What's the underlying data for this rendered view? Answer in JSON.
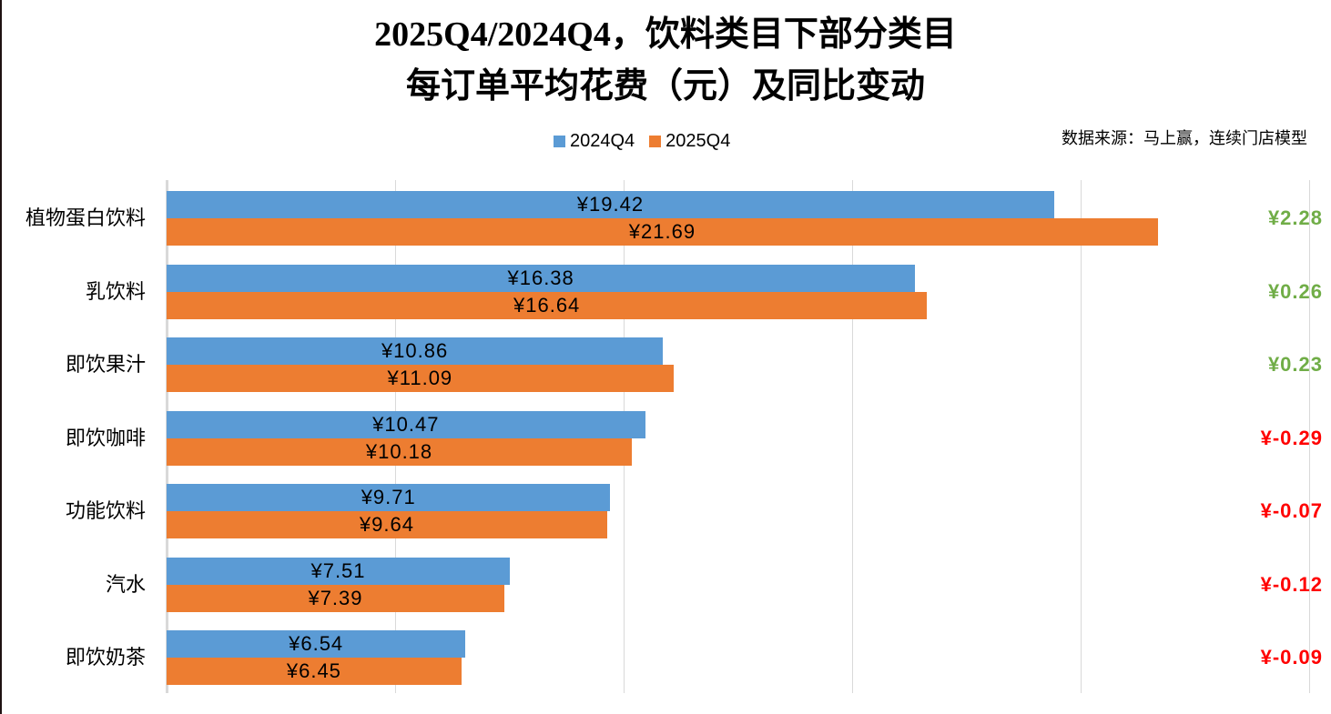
{
  "page": {
    "background": "#FFFFFF"
  },
  "title": {
    "line1": "2025Q4/2024Q4，饮料类目下部分类目",
    "line2": "每订单平均花费（元）及同比变动"
  },
  "source_note": "数据来源：马上赢，连续门店模型",
  "legend": {
    "items": [
      {
        "label": "2024Q4",
        "color": "#5B9BD5"
      },
      {
        "label": "2025Q4",
        "color": "#ED7D31"
      }
    ]
  },
  "colors": {
    "series_2024q4": "#5B9BD5",
    "series_2025q4": "#ED7D31",
    "positive_change": "#70AD47",
    "negative_change": "#FF0000",
    "gridline": "#D9D9D9",
    "label_text": "#000000"
  },
  "chart_data": {
    "type": "bar",
    "orientation": "horizontal",
    "title": "2025Q4/2024Q4，饮料类目下部分类目 每订单平均花费（元）及同比变动",
    "categories": [
      "植物蛋白饮料",
      "乳饮料",
      "即饮果汁",
      "即饮咖啡",
      "功能饮料",
      "汽水",
      "即饮奶茶"
    ],
    "series": [
      {
        "name": "2024Q4",
        "color": "#5B9BD5",
        "values": [
          19.42,
          16.38,
          10.86,
          10.47,
          9.71,
          7.51,
          6.54
        ],
        "labels": [
          "¥19.42",
          "¥16.38",
          "¥10.86",
          "¥10.47",
          "¥9.71",
          "¥7.51",
          "¥6.54"
        ]
      },
      {
        "name": "2025Q4",
        "color": "#ED7D31",
        "values": [
          21.69,
          16.64,
          11.09,
          10.18,
          9.64,
          7.39,
          6.45
        ],
        "labels": [
          "¥21.69",
          "¥16.64",
          "¥11.09",
          "¥10.18",
          "¥9.64",
          "¥7.39",
          "¥6.45"
        ]
      }
    ],
    "yoy_changes": {
      "values": [
        2.28,
        0.26,
        0.23,
        -0.29,
        -0.07,
        -0.12,
        -0.09
      ],
      "labels": [
        "¥2.28",
        "¥0.26",
        "¥0.23",
        "¥-0.29",
        "¥-0.07",
        "¥-0.12",
        "¥-0.09"
      ]
    },
    "xlim": [
      0,
      25.5
    ],
    "grid": true,
    "gridline_values": [
      0,
      5,
      10,
      15,
      20,
      25
    ],
    "x_tick_labels_visible": false,
    "value_prefix": "¥",
    "legend_position": "top"
  }
}
